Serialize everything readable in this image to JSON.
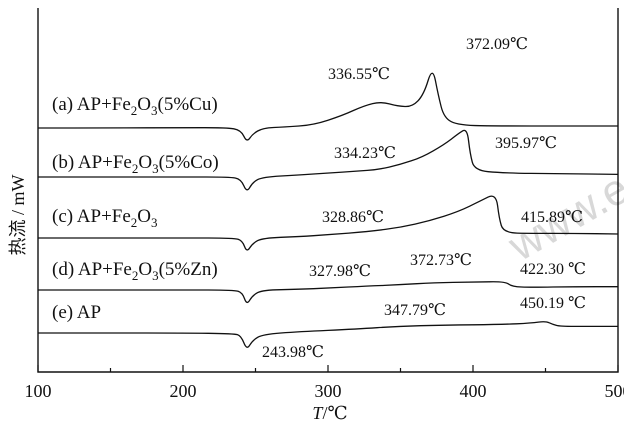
{
  "chart_data": {
    "type": "line",
    "xlabel": "T/℃",
    "ylabel": "热流 / mW",
    "xlim": [
      100,
      500
    ],
    "xticks": [
      100,
      200,
      300,
      400,
      500
    ],
    "watermark": "www.e",
    "series": [
      {
        "id": "a",
        "name": "(a) AP+Fe2O3(5%Cu)",
        "label_parts": [
          "(a) AP+Fe",
          "2",
          "O",
          "3",
          "(5%Cu)"
        ],
        "peaks": [
          {
            "x": 336.55,
            "label": "336.55℃"
          },
          {
            "x": 372.09,
            "label": "372.09℃"
          }
        ],
        "points": [
          [
            100,
            0
          ],
          [
            150,
            0
          ],
          [
            200,
            0.05
          ],
          [
            230,
            0.05
          ],
          [
            240,
            -0.3
          ],
          [
            244,
            -2.2
          ],
          [
            248,
            -0.9
          ],
          [
            255,
            0
          ],
          [
            270,
            0.15
          ],
          [
            290,
            0.45
          ],
          [
            310,
            1.9
          ],
          [
            325,
            3.4
          ],
          [
            336.55,
            4.0
          ],
          [
            348,
            3.3
          ],
          [
            358,
            3.2
          ],
          [
            366,
            5.0
          ],
          [
            372.09,
            9.4
          ],
          [
            376,
            5.0
          ],
          [
            380,
            1.5
          ],
          [
            390,
            0.4
          ],
          [
            420,
            0.3
          ],
          [
            460,
            0.3
          ],
          [
            500,
            0.3
          ]
        ]
      },
      {
        "id": "b",
        "name": "(b) AP+Fe2O3(5%Co)",
        "label_parts": [
          "(b) AP+Fe",
          "2",
          "O",
          "3",
          "(5%Co)"
        ],
        "peaks": [
          {
            "x": 334.23,
            "label": "334.23℃"
          },
          {
            "x": 395.97,
            "label": "395.97℃"
          }
        ],
        "points": [
          [
            100,
            0
          ],
          [
            150,
            0
          ],
          [
            200,
            0
          ],
          [
            232,
            0
          ],
          [
            240,
            -0.3
          ],
          [
            244,
            -2.4
          ],
          [
            248,
            -0.8
          ],
          [
            255,
            0
          ],
          [
            280,
            0.3
          ],
          [
            300,
            0.6
          ],
          [
            320,
            0.9
          ],
          [
            334.23,
            1.1
          ],
          [
            350,
            1.9
          ],
          [
            365,
            3.0
          ],
          [
            380,
            4.9
          ],
          [
            390,
            6.6
          ],
          [
            395.97,
            7.4
          ],
          [
            398,
            3.5
          ],
          [
            401,
            1.0
          ],
          [
            420,
            0.6
          ],
          [
            460,
            0.5
          ],
          [
            500,
            0.4
          ]
        ]
      },
      {
        "id": "c",
        "name": "(c) AP+Fe2O3",
        "label_parts": [
          "(c) AP+Fe",
          "2",
          "O",
          "3",
          ""
        ],
        "peaks": [
          {
            "x": 328.86,
            "label": "328.86℃"
          },
          {
            "x": 415.89,
            "label": "415.89℃"
          }
        ],
        "points": [
          [
            100,
            0
          ],
          [
            150,
            0
          ],
          [
            200,
            0
          ],
          [
            235,
            0
          ],
          [
            241,
            -0.4
          ],
          [
            244,
            -2.2
          ],
          [
            248,
            -0.8
          ],
          [
            255,
            0
          ],
          [
            280,
            0.2
          ],
          [
            300,
            0.5
          ],
          [
            328.86,
            1.0
          ],
          [
            350,
            1.6
          ],
          [
            370,
            2.6
          ],
          [
            390,
            4.0
          ],
          [
            405,
            5.6
          ],
          [
            415.89,
            6.8
          ],
          [
            418,
            3.0
          ],
          [
            421,
            0.8
          ],
          [
            440,
            0.7
          ],
          [
            470,
            0.7
          ],
          [
            500,
            0.6
          ]
        ]
      },
      {
        "id": "d",
        "name": "(d) AP+Fe2O3(5%Zn)",
        "label_parts": [
          "(d) AP+Fe",
          "2",
          "O",
          "3",
          "(5%Zn)"
        ],
        "peaks": [
          {
            "x": 327.98,
            "label": "327.98℃"
          },
          {
            "x": 372.73,
            "label": "372.73℃"
          },
          {
            "x": 422.3,
            "label": "422.30 ℃"
          }
        ],
        "points": [
          [
            100,
            0
          ],
          [
            150,
            0
          ],
          [
            200,
            0
          ],
          [
            235,
            0
          ],
          [
            241,
            -0.4
          ],
          [
            244,
            -2.3
          ],
          [
            248,
            -0.8
          ],
          [
            255,
            0
          ],
          [
            280,
            0.1
          ],
          [
            300,
            0.3
          ],
          [
            327.98,
            0.6
          ],
          [
            350,
            0.8
          ],
          [
            372.73,
            1.1
          ],
          [
            400,
            1.2
          ],
          [
            422.3,
            1.3
          ],
          [
            427,
            0.5
          ],
          [
            440,
            0.4
          ],
          [
            470,
            0.5
          ],
          [
            500,
            0.5
          ]
        ]
      },
      {
        "id": "e",
        "name": "(e) AP",
        "label_parts": [
          "(e) AP",
          "",
          "",
          "",
          ""
        ],
        "peaks": [
          {
            "x": 243.98,
            "label": "243.98℃"
          },
          {
            "x": 347.79,
            "label": "347.79℃"
          },
          {
            "x": 450.19,
            "label": "450.19 ℃"
          }
        ],
        "points": [
          [
            100,
            0
          ],
          [
            150,
            0
          ],
          [
            200,
            0
          ],
          [
            235,
            -0.1
          ],
          [
            240,
            -0.4
          ],
          [
            243.98,
            -2.6
          ],
          [
            248,
            -1.1
          ],
          [
            255,
            -0.2
          ],
          [
            280,
            0.2
          ],
          [
            320,
            0.6
          ],
          [
            347.79,
            1.0
          ],
          [
            380,
            1.2
          ],
          [
            420,
            1.3
          ],
          [
            440,
            1.5
          ],
          [
            450.19,
            1.8
          ],
          [
            455,
            1.3
          ],
          [
            460,
            1.0
          ],
          [
            480,
            1.0
          ],
          [
            500,
            1.0
          ]
        ]
      }
    ]
  }
}
